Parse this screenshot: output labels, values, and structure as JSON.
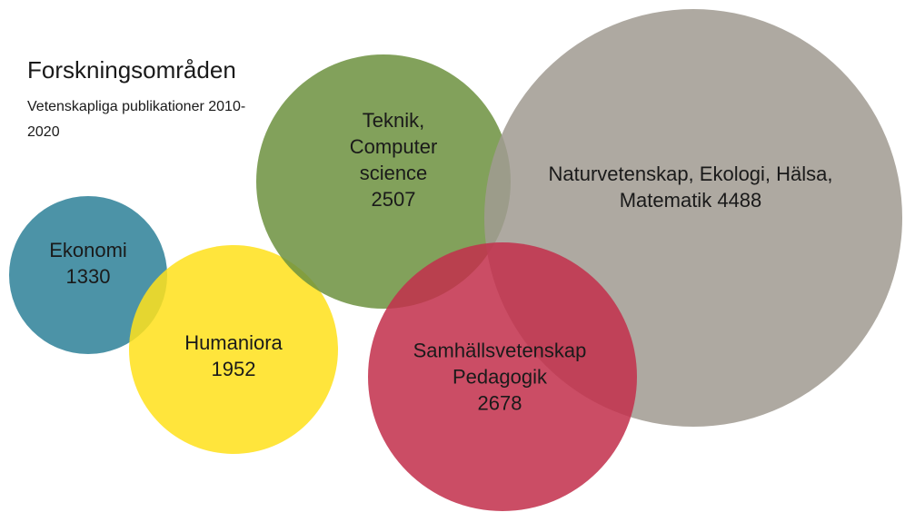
{
  "chart_data": {
    "type": "bubble",
    "title": "Forskningsområden",
    "subtitle": "Vetenskapliga publikationer 2010-2020",
    "categories": [
      "Ekonomi",
      "Humaniora",
      "Teknik, Computer science",
      "Naturvetenskap, Ekologi, Hälsa, Matematik",
      "Samhällsvetenskap Pedagogik"
    ],
    "values": [
      1330,
      1952,
      2507,
      4488,
      2678
    ],
    "colors": [
      "#2e8199",
      "#ffe11c",
      "#6d9140",
      "#a19b92",
      "#c3304c"
    ]
  }
}
